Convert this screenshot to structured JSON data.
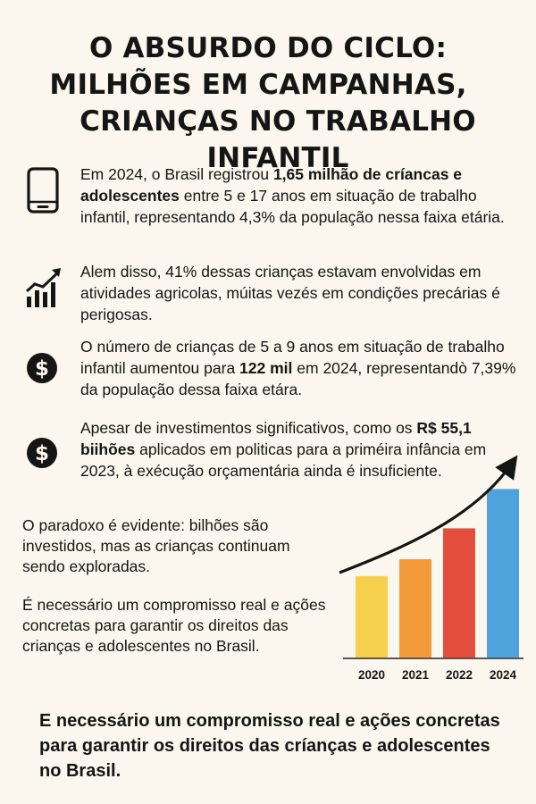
{
  "header": {
    "line1": "O ABSURDO DO CICLO:",
    "line2": "MILHÕES EM CAMPANHAS,",
    "line3": "CRIANÇAS NO TRABALHO INFANTIL"
  },
  "items": [
    {
      "icon": "tablet-icon",
      "t1": "Em 2024, o Brasil registrou ",
      "b1": "1,65 milhão de críancas e adolescentes",
      "t2": " entre 5 e 17 anos em situação de trabalho infantil, representando 4,3% da população nessa faixa etária."
    },
    {
      "icon": "growth-chart-icon",
      "t1": "Alem disso, 41% dessas crianças estavam envolvidas em atividades agricolas, múitas vezés em condições precárias é perigosas."
    },
    {
      "icon": "dollar-icon",
      "t1": "O número de crianças de 5 a 9 anos em situação de trabalho infantil aumentou para ",
      "b1": "122 mil",
      "t2": " em 2024, representandò 7,39% da população dessa faixa etára."
    },
    {
      "icon": "dollar-icon",
      "t1": "Apesar de investimentos significativos, como os ",
      "b1": "R$ 55,1 biihões",
      "t2": " aplicados em politicas para a priméira infância em 2023, à exécução orçamentária ainda é insuficiente."
    }
  ],
  "paragraphs": {
    "p1": "O paradoxo é evidente: bilhões são investidos, mas as crianças continuam sendo exploradas.",
    "p2": "É necessário um compromisso real e ações concretas para garantir os direitos das crianças e adolescentes no Brasil."
  },
  "footer": {
    "text": "E necessário um compromisso real e ações concretas para garantir os direitos das críanças e adolescentes no Brasil."
  },
  "chart_data": {
    "type": "bar",
    "title": "",
    "xlabel": "",
    "ylabel": "",
    "categories": [
      "2020",
      "2021",
      "2022",
      "2024"
    ],
    "values": [
      2.9,
      3.5,
      4.6,
      6.0
    ],
    "colors": [
      "#f6d04d",
      "#f39b3a",
      "#e24d3c",
      "#4fa3dd"
    ],
    "ylim": [
      0,
      7
    ],
    "trend_arrow": true
  }
}
